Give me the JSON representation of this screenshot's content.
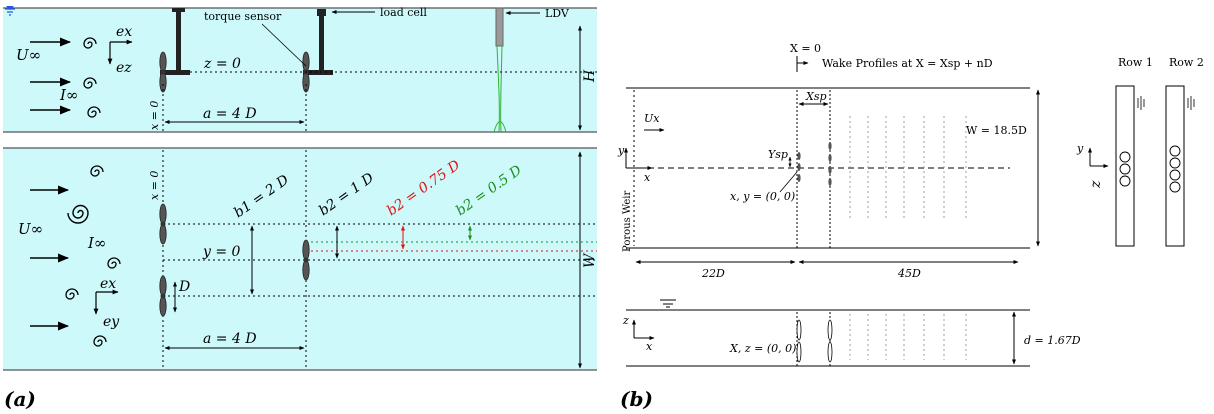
{
  "panel_a": {
    "label": "(a)",
    "side": {
      "torque_sensor": "torque sensor",
      "load_cell": "load cell",
      "ldv": "LDV",
      "u_inf": "U∞",
      "i_inf": "I∞",
      "ex": "ex",
      "ez": "ez",
      "z0": "z = 0",
      "x0": "x = 0",
      "a": "a = 4  D",
      "H": "H"
    },
    "plan": {
      "x0": "x = 0",
      "u_inf": "U∞",
      "i_inf": "I∞",
      "ex": "ex",
      "ey": "ey",
      "b1": "b1 = 2 D",
      "b2_black": "b2 = 1 D",
      "b2_red": "b2 = 0.75 D",
      "b2_green": "b2 = 0.5 D",
      "y0": "y = 0",
      "D": "D",
      "a": "a = 4  D",
      "W": "W"
    },
    "colors": {
      "water": "#cdf9fb",
      "red": "#e01010",
      "green": "#1a8f1a",
      "ldv_beam": "#2fb52f",
      "sensor": "#222222"
    }
  },
  "panel_b": {
    "label": "(b)",
    "x_eq_0": "X = 0",
    "wake_title": "Wake Profiles at X = Xsp + nD",
    "xsp": "Xsp",
    "ux": "Ux",
    "y": "y",
    "x": "x",
    "ysp": "Ysp",
    "origin": "x, y = (0, 0)",
    "porous": "Porous Weir",
    "W": "W = 18.5D",
    "d22": "22D",
    "d45": "45D",
    "z": "z",
    "xz_origin": "X, z = (0, 0)",
    "depth": "d = 1.67D",
    "row1": "Row 1",
    "row2": "Row 2"
  }
}
